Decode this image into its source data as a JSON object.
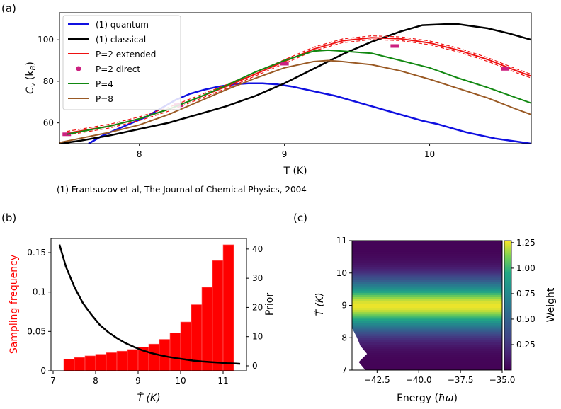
{
  "panel_labels": {
    "a": "(a)",
    "b": "(b)",
    "c": "(c)"
  },
  "footnote": "(1) Frantsuzov et al, The Journal of Chemical Physics, 2004",
  "colors": {
    "quantum": "#1010e0",
    "classical": "#000000",
    "p2ext": "#ee1111",
    "p2dir": "#cc2080",
    "p4": "#118811",
    "p8": "#9a5a25",
    "bar": "#ff0000",
    "prior": "#000000"
  },
  "chart_data": [
    {
      "id": "a",
      "type": "line",
      "xlabel": "T (K)",
      "ylabel": "C_v (k_B)",
      "ylabel_main": "C",
      "ylabel_sub": "v",
      "ylabel_paren": "(k",
      "ylabel_sub2": "B",
      "ylabel_close": ")",
      "xlim": [
        7.45,
        10.7
      ],
      "ylim": [
        50,
        113
      ],
      "xticks": [
        8,
        9,
        10
      ],
      "xtick_labels": [
        "8",
        "9",
        "10"
      ],
      "yticks": [
        60,
        80,
        100
      ],
      "ytick_labels": [
        "60",
        "80",
        "100"
      ],
      "legend": {
        "position": "top-left",
        "entries": [
          "(1) quantum",
          "(1) classical",
          "P=2 extended",
          "P=2 direct",
          "P=4",
          "P=8"
        ]
      },
      "series": [
        {
          "name": "(1) quantum",
          "key": "quantum",
          "style": "line",
          "x": [
            7.65,
            7.75,
            7.85,
            7.95,
            8.05,
            8.15,
            8.25,
            8.35,
            8.45,
            8.55,
            8.65,
            8.75,
            8.85,
            8.95,
            9.05,
            9.15,
            9.25,
            9.35,
            9.45,
            9.55,
            9.65,
            9.75,
            9.85,
            9.95,
            10.05,
            10.15,
            10.25,
            10.35,
            10.45,
            10.55,
            10.65,
            10.7
          ],
          "y": [
            50,
            54,
            57,
            60,
            63,
            67,
            71,
            74,
            76,
            77.5,
            78.5,
            79,
            79,
            78.5,
            77.5,
            76,
            74.5,
            73,
            71,
            69,
            67,
            65,
            63,
            61,
            59.5,
            57.5,
            55.5,
            54,
            52.5,
            51.5,
            50.5,
            50
          ]
        },
        {
          "name": "(1) classical",
          "key": "classical",
          "style": "line",
          "x": [
            7.45,
            7.6,
            7.8,
            8.0,
            8.2,
            8.4,
            8.6,
            8.8,
            9.0,
            9.2,
            9.4,
            9.6,
            9.8,
            9.95,
            10.1,
            10.2,
            10.4,
            10.55,
            10.7
          ],
          "y": [
            50,
            51.5,
            54,
            57,
            60,
            64,
            68,
            73,
            79,
            86,
            93,
            99,
            104,
            107,
            107.5,
            107.5,
            105.5,
            103,
            100
          ]
        },
        {
          "name": "P=2 extended",
          "key": "p2ext",
          "style": "band",
          "x": [
            7.5,
            7.8,
            8.0,
            8.2,
            8.4,
            8.6,
            8.8,
            9.0,
            9.2,
            9.4,
            9.6,
            9.8,
            10.0,
            10.2,
            10.4,
            10.6,
            10.7
          ],
          "y": [
            55,
            58.5,
            62,
            66.5,
            72,
            77.5,
            83.5,
            89.5,
            95.5,
            99.5,
            101,
            100.5,
            98.5,
            95,
            90.5,
            85,
            82.5
          ]
        },
        {
          "name": "P=2 direct",
          "key": "p2dir",
          "style": "marker",
          "x": [
            7.5,
            8.27,
            9.0,
            9.76,
            10.52
          ],
          "y": [
            54.5,
            68.5,
            88.5,
            97,
            86
          ]
        },
        {
          "name": "P=4",
          "key": "p4",
          "style": "line",
          "x": [
            7.5,
            7.8,
            8.0,
            8.2,
            8.4,
            8.6,
            8.8,
            9.0,
            9.2,
            9.3,
            9.4,
            9.6,
            9.8,
            10.0,
            10.2,
            10.4,
            10.6,
            10.7
          ],
          "y": [
            54.5,
            58.5,
            62,
            66.5,
            72,
            78,
            84.5,
            90,
            94.5,
            95,
            94.5,
            93.5,
            90,
            86.5,
            81.5,
            77,
            72,
            69.5
          ]
        },
        {
          "name": "P=8",
          "key": "p8",
          "style": "line",
          "x": [
            7.45,
            7.8,
            8.0,
            8.2,
            8.4,
            8.6,
            8.8,
            9.0,
            9.2,
            9.3,
            9.4,
            9.6,
            9.8,
            10.0,
            10.2,
            10.4,
            10.6,
            10.7
          ],
          "y": [
            50.5,
            55.5,
            59,
            64,
            70,
            76,
            81.5,
            86.5,
            89.5,
            90,
            89.5,
            88,
            85,
            81,
            76.5,
            72,
            66.5,
            64
          ]
        }
      ]
    },
    {
      "id": "b",
      "type": "bar",
      "xlabel": "T̃ (K)",
      "ylabel": "Sampling frequency",
      "y2label": "Prior",
      "xlim": [
        6.95,
        11.55
      ],
      "ylim": [
        0,
        0.168
      ],
      "y2lim": [
        -1.7,
        43.6
      ],
      "xticks": [
        7,
        8,
        9,
        10,
        11
      ],
      "xtick_labels": [
        "7",
        "8",
        "9",
        "10",
        "11"
      ],
      "yticks": [
        0,
        0.05,
        0.1,
        0.15
      ],
      "ytick_labels": [
        "0",
        "0.05",
        "0.1",
        "0.15"
      ],
      "y2ticks": [
        0,
        10,
        20,
        30,
        40
      ],
      "y2tick_labels": [
        "0",
        "10",
        "20",
        "30",
        "40"
      ],
      "bin_width": 0.25,
      "bin_centers": [
        7.375,
        7.625,
        7.875,
        8.125,
        8.375,
        8.625,
        8.875,
        9.125,
        9.375,
        9.625,
        9.875,
        10.125,
        10.375,
        10.625,
        10.875,
        11.125
      ],
      "values": [
        0.015,
        0.017,
        0.019,
        0.021,
        0.023,
        0.025,
        0.027,
        0.03,
        0.034,
        0.04,
        0.048,
        0.062,
        0.084,
        0.106,
        0.14,
        0.16
      ],
      "prior": {
        "x": [
          7.15,
          7.3,
          7.5,
          7.7,
          7.9,
          8.1,
          8.3,
          8.5,
          8.7,
          8.9,
          9.1,
          9.3,
          9.5,
          9.7,
          9.9,
          10.1,
          10.3,
          10.5,
          10.7,
          10.9,
          11.1,
          11.3,
          11.4
        ],
        "y": [
          41.5,
          34,
          27,
          21.5,
          17.5,
          14,
          11.5,
          9.5,
          7.8,
          6.5,
          5.3,
          4.4,
          3.7,
          3.1,
          2.6,
          2.2,
          1.8,
          1.5,
          1.3,
          1.1,
          0.9,
          0.8,
          0.7
        ]
      }
    },
    {
      "id": "c",
      "type": "heatmap",
      "xlabel": "Energy (ħω)",
      "xlabel_main": "Energy (",
      "xlabel_sym": "ħω",
      "xlabel_close": ")",
      "ylabel": "T̃ (K)",
      "colorbar_label": "Weight",
      "xlim": [
        -44.0,
        -35.0
      ],
      "ylim": [
        7,
        11
      ],
      "xticks": [
        -42.5,
        -40.0,
        -37.5,
        -35.0
      ],
      "xtick_labels": [
        "−42.5",
        "−40.0",
        "−37.5",
        "−35.0"
      ],
      "yticks": [
        7,
        8,
        9,
        10,
        11
      ],
      "ytick_labels": [
        "7",
        "8",
        "9",
        "10",
        "11"
      ],
      "clim": [
        0.0,
        1.27
      ],
      "cticks": [
        0.25,
        0.5,
        0.75,
        1.0,
        1.25
      ],
      "ctick_labels": [
        "0.25",
        "0.50",
        "0.75",
        "1.00",
        "1.25"
      ],
      "peak_T": 9.0,
      "peak_weight": 1.25,
      "min_weight": 0.01,
      "width_K": 0.55,
      "empty_region_T": [
        {
          "T": 7.0,
          "E_max": -43.2
        },
        {
          "T": 7.25,
          "E_max": -43.6
        },
        {
          "T": 7.5,
          "E_max": -43.1
        },
        {
          "T": 7.75,
          "E_max": -43.5
        },
        {
          "T": 8.0,
          "E_max": -43.7
        },
        {
          "T": 8.3,
          "E_max": -44.0
        }
      ]
    }
  ]
}
